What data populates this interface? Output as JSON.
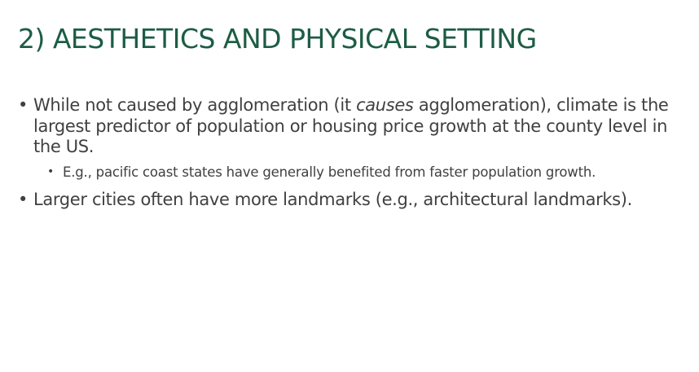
{
  "slide": {
    "title": "2) AESTHETICS AND PHYSICAL SETTING",
    "bullet_symbol": "•",
    "bullets": [
      {
        "text_before": "While not caused by agglomeration (it ",
        "text_italic": "causes",
        "text_after": " agglomeration), climate is the largest predictor of population or housing price growth at the county level in the US.",
        "sub_bullets": [
          {
            "text": "E.g., pacific coast states have generally benefited from faster population growth."
          }
        ]
      },
      {
        "text": "Larger cities often have more landmarks (e.g., architectural landmarks)."
      }
    ]
  }
}
